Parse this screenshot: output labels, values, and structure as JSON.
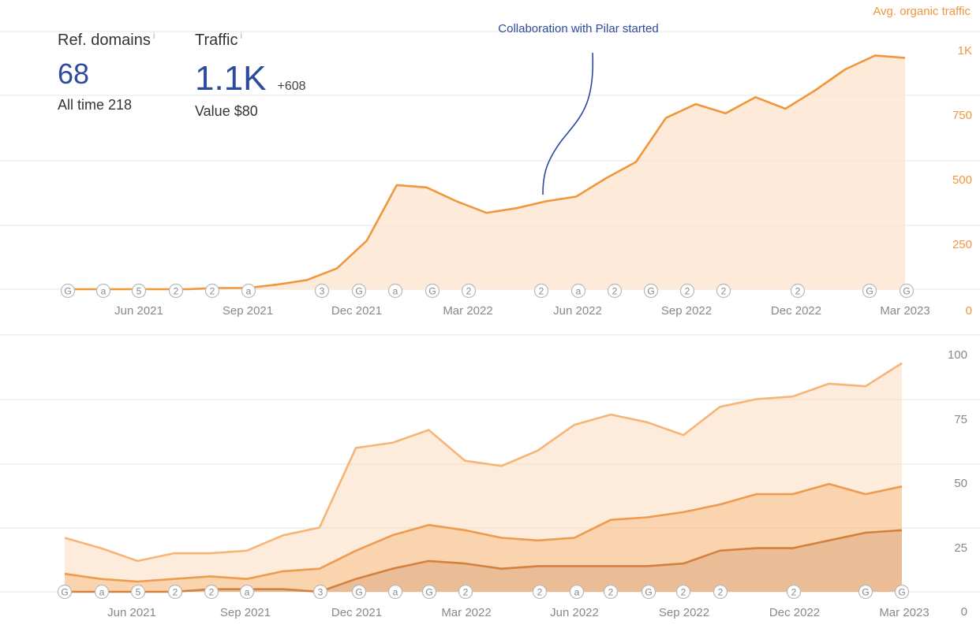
{
  "stats": {
    "ref_domains": {
      "label": "Ref. domains",
      "info": "i",
      "value": "68",
      "all_time_label": "All time",
      "all_time_value": "218"
    },
    "traffic": {
      "label": "Traffic",
      "info": "i",
      "value": "1.1K",
      "delta": "+608",
      "value_label": "Value",
      "value_amount": "$80"
    }
  },
  "annotation": {
    "text": "Collaboration with Pilar started",
    "color": "#2c4a9e"
  },
  "colors": {
    "traffic_line": "#f0963c",
    "traffic_fill": "#fde3cc",
    "axis_text_orange": "#f0963c",
    "axis_text_gray": "#888888",
    "grid": "#e6e6e6",
    "keyword_light": "#f6b577",
    "keyword_mid": "#ee9a4f",
    "keyword_dark": "#d4813e",
    "marker_text": "#888888"
  },
  "chart_data": [
    {
      "type": "area",
      "title": "Avg. organic traffic",
      "x_ticks": [
        "Jun 2021",
        "Sep 2021",
        "Dec 2021",
        "Mar 2022",
        "Jun 2022",
        "Sep 2022",
        "Dec 2022",
        "Mar 2023"
      ],
      "y_ticks": [
        "0",
        "250",
        "500",
        "750",
        "1K"
      ],
      "ylim": [
        0,
        1100
      ],
      "grid": true,
      "series": [
        {
          "values": [
            0,
            0,
            0,
            0,
            0,
            5,
            5,
            20,
            40,
            90,
            210,
            450,
            440,
            380,
            330,
            350,
            380,
            400,
            480,
            550,
            740,
            800,
            760,
            830,
            780,
            860,
            950,
            1010,
            1000
          ]
        }
      ],
      "markers": [
        "G",
        "a",
        "5",
        "2",
        "2",
        "a",
        "3",
        "G",
        "a",
        "G",
        "2",
        "2",
        "a",
        "2",
        "G",
        "2",
        "2",
        "2",
        "G",
        "G"
      ]
    },
    {
      "type": "area",
      "x_ticks": [
        "Jun 2021",
        "Sep 2021",
        "Dec 2021",
        "Mar 2022",
        "Jun 2022",
        "Sep 2022",
        "Dec 2022",
        "Mar 2023"
      ],
      "y_ticks": [
        "0",
        "25",
        "50",
        "75",
        "100"
      ],
      "ylim": [
        0,
        100
      ],
      "grid": true,
      "series": [
        {
          "values": [
            21,
            17,
            12,
            15,
            15,
            16,
            22,
            25,
            56,
            58,
            63,
            51,
            49,
            55,
            65,
            69,
            66,
            61,
            72,
            75,
            76,
            81,
            80,
            89
          ]
        },
        {
          "values": [
            7,
            5,
            4,
            5,
            6,
            5,
            8,
            9,
            16,
            22,
            26,
            24,
            21,
            20,
            21,
            28,
            29,
            31,
            34,
            38,
            38,
            42,
            38,
            41
          ]
        },
        {
          "values": [
            0,
            0,
            0,
            0,
            1,
            1,
            1,
            0,
            5,
            9,
            12,
            11,
            9,
            10,
            10,
            10,
            10,
            11,
            16,
            17,
            17,
            20,
            23,
            24
          ]
        }
      ],
      "markers": [
        "G",
        "a",
        "5",
        "2",
        "2",
        "a",
        "3",
        "G",
        "a",
        "G",
        "2",
        "2",
        "a",
        "2",
        "G",
        "2",
        "2",
        "2",
        "G",
        "G"
      ]
    }
  ]
}
